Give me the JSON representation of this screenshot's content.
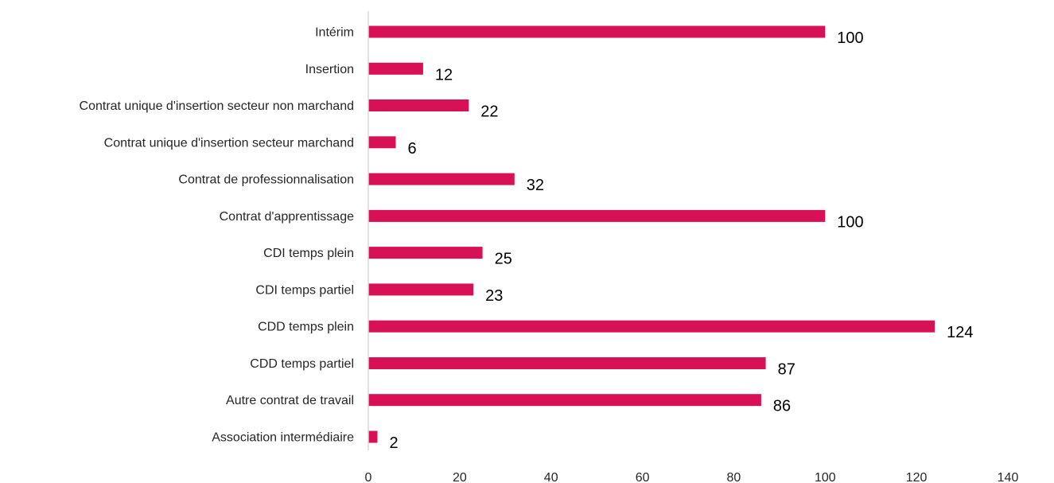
{
  "chart_data": {
    "type": "bar",
    "orientation": "horizontal",
    "categories": [
      "Intérim",
      "Insertion",
      "Contrat unique d'insertion secteur non marchand",
      "Contrat unique d'insertion secteur marchand",
      "Contrat de professionnalisation",
      "Contrat d'apprentissage",
      "CDI temps plein",
      "CDI temps partiel",
      "CDD temps plein",
      "CDD temps partiel",
      "Autre contrat de travail",
      "Association intermédiaire"
    ],
    "values": [
      100,
      12,
      22,
      6,
      32,
      100,
      25,
      23,
      124,
      87,
      86,
      2
    ],
    "xlim": [
      0,
      140
    ],
    "xticks": [
      0,
      20,
      40,
      60,
      80,
      100,
      120,
      140
    ],
    "grid": false,
    "data_labels": true,
    "colors": {
      "bar": "#D81157",
      "axis": "#D9D9D9"
    }
  }
}
